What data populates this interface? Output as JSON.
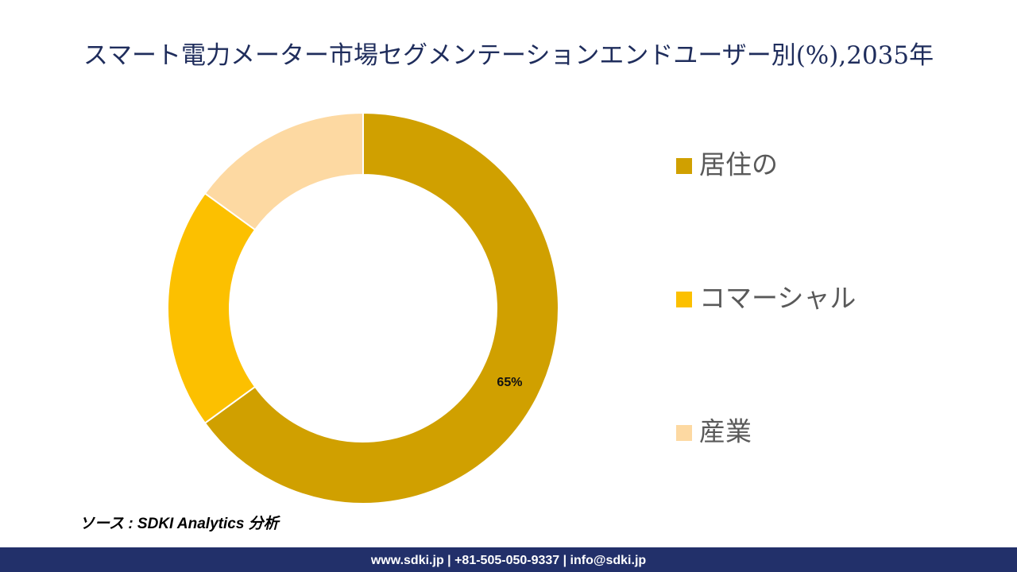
{
  "chart_data": {
    "type": "donut",
    "title": "スマート電力メーター市場セグメンテーションエンドユーザー別(%),2035年",
    "categories": [
      "居住の",
      "コマーシャル",
      "産業"
    ],
    "values": [
      65,
      20,
      15
    ],
    "value_labels": [
      "65%",
      null,
      null
    ],
    "colors": [
      "#d0a000",
      "#fcc000",
      "#fdd9a2"
    ],
    "legend": "right"
  },
  "source": "ソース : SDKI Analytics 分析",
  "footer": "www.sdki.jp | +81-505-050-9337 | info@sdki.jp"
}
